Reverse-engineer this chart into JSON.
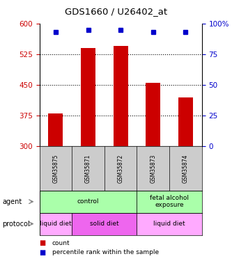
{
  "title": "GDS1660 / U26402_at",
  "samples": [
    "GSM35875",
    "GSM35871",
    "GSM35872",
    "GSM35873",
    "GSM35874"
  ],
  "bar_values": [
    380,
    540,
    545,
    455,
    420
  ],
  "percentile_values": [
    93,
    95,
    95,
    93,
    93
  ],
  "bar_color": "#cc0000",
  "dot_color": "#0000cc",
  "ylim_left": [
    300,
    600
  ],
  "ylim_right": [
    0,
    100
  ],
  "yticks_left": [
    300,
    375,
    450,
    525,
    600
  ],
  "yticks_right": [
    0,
    25,
    50,
    75,
    100
  ],
  "agent_groups": [
    {
      "label": "control",
      "start": 0,
      "end": 3,
      "color": "#aaffaa"
    },
    {
      "label": "fetal alcohol\nexposure",
      "start": 3,
      "end": 5,
      "color": "#aaffaa"
    }
  ],
  "protocol_groups": [
    {
      "label": "liquid diet",
      "start": 0,
      "end": 1,
      "color": "#ffaaff"
    },
    {
      "label": "solid diet",
      "start": 1,
      "end": 3,
      "color": "#ee66ee"
    },
    {
      "label": "liquid diet",
      "start": 3,
      "end": 5,
      "color": "#ffaaff"
    }
  ],
  "legend_count_color": "#cc0000",
  "legend_pct_color": "#0000cc",
  "ylabel_left_color": "#cc0000",
  "ylabel_right_color": "#0000cc",
  "background_color": "#ffffff",
  "plot_bg_color": "#ffffff",
  "tick_label_area_color": "#cccccc",
  "grid_dotted_ticks": [
    375,
    450,
    525
  ],
  "arrow_color": "#888888"
}
